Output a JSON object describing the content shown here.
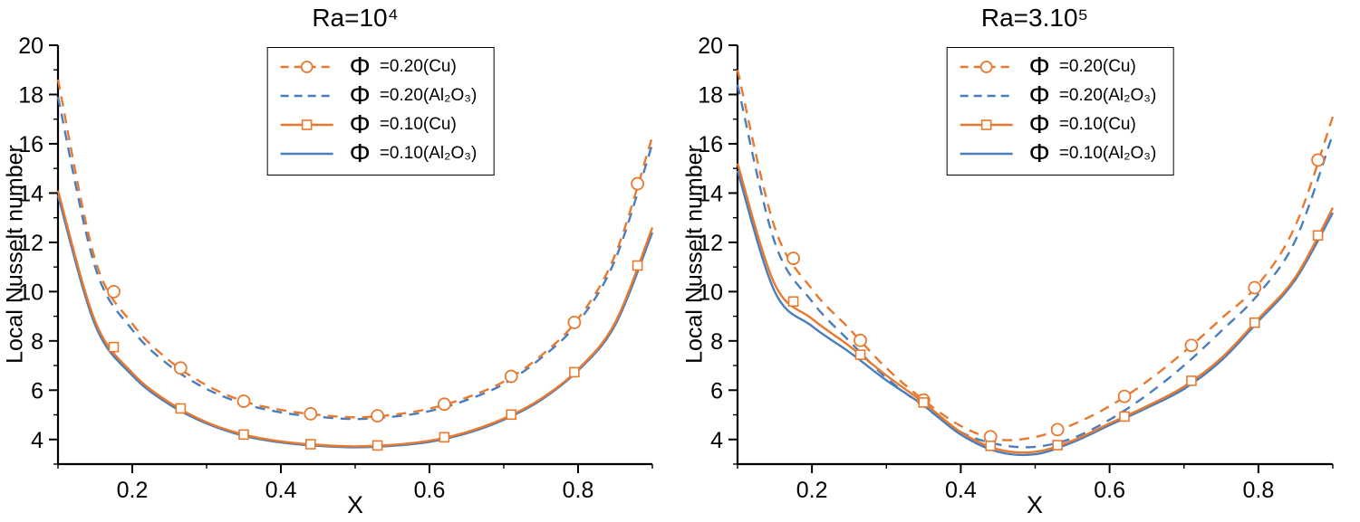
{
  "colors": {
    "orange": "#e8792f",
    "blue": "#4a7ebb",
    "axis": "#000000"
  },
  "chart_data": [
    {
      "type": "line",
      "title": "Ra=10⁴",
      "xlabel": "X",
      "ylabel": "Local Nusselt number",
      "xlim": [
        0.1,
        0.9
      ],
      "ylim": [
        3,
        20
      ],
      "xticks": [
        0.2,
        0.4,
        0.6,
        0.8
      ],
      "xticks_minor": [
        0.1,
        0.3,
        0.5,
        0.7,
        0.9
      ],
      "yticks": [
        4,
        6,
        8,
        10,
        12,
        14,
        16,
        18,
        20
      ],
      "yticks_minor": [
        3,
        5,
        7,
        9,
        11,
        13,
        15,
        17,
        19
      ],
      "grid": false,
      "legend_position": "top-center",
      "x": [
        0.1,
        0.15,
        0.2,
        0.25,
        0.3,
        0.35,
        0.4,
        0.45,
        0.5,
        0.55,
        0.6,
        0.65,
        0.7,
        0.75,
        0.8,
        0.85,
        0.9
      ],
      "series": [
        {
          "name": "Φ =0.20(Cu)",
          "phi": "Φ",
          "label": "=0.20(Cu)",
          "color": "#e8792f",
          "dash": "dashed",
          "marker": "circle",
          "marker_x": [
            0.175,
            0.265,
            0.35,
            0.44,
            0.53,
            0.62,
            0.71,
            0.795,
            0.88
          ],
          "values": [
            18.6,
            11.3,
            8.7,
            7.2,
            6.2,
            5.55,
            5.2,
            5.0,
            4.9,
            5.0,
            5.25,
            5.7,
            6.35,
            7.4,
            8.9,
            11.5,
            16.3
          ]
        },
        {
          "name": "Φ =0.20(Al₂O₃)",
          "phi": "Φ",
          "label": "=0.20(Al₂O₃)",
          "color": "#4a7ebb",
          "dash": "dashed",
          "marker": null,
          "values": [
            17.9,
            11.0,
            8.45,
            7.0,
            6.05,
            5.45,
            5.1,
            4.92,
            4.83,
            4.92,
            5.15,
            5.6,
            6.25,
            7.3,
            8.75,
            11.3,
            16.0
          ]
        },
        {
          "name": "Φ =0.10(Cu)",
          "phi": "Φ",
          "label": "=0.10(Cu)",
          "color": "#e8792f",
          "dash": "solid",
          "marker": "square",
          "marker_x": [
            0.175,
            0.265,
            0.35,
            0.44,
            0.53,
            0.62,
            0.71,
            0.795,
            0.88
          ],
          "values": [
            14.1,
            8.8,
            6.7,
            5.5,
            4.7,
            4.2,
            3.92,
            3.78,
            3.72,
            3.78,
            3.95,
            4.3,
            4.85,
            5.65,
            6.85,
            8.75,
            12.6
          ]
        },
        {
          "name": "Φ =0.10(Al₂O₃)",
          "phi": "Φ",
          "label": "=0.10(Al₂O₃)",
          "color": "#4a7ebb",
          "dash": "solid",
          "marker": null,
          "values": [
            13.9,
            8.65,
            6.6,
            5.42,
            4.65,
            4.15,
            3.88,
            3.74,
            3.68,
            3.74,
            3.9,
            4.25,
            4.8,
            5.6,
            6.8,
            8.65,
            12.4
          ]
        }
      ]
    },
    {
      "type": "line",
      "title": "Ra=3.10⁵",
      "xlabel": "X",
      "ylabel": "Local Nusselt number",
      "xlim": [
        0.1,
        0.9
      ],
      "ylim": [
        3,
        20
      ],
      "xticks": [
        0.2,
        0.4,
        0.6,
        0.8
      ],
      "xticks_minor": [
        0.1,
        0.3,
        0.5,
        0.7,
        0.9
      ],
      "yticks": [
        4,
        6,
        8,
        10,
        12,
        14,
        16,
        18,
        20
      ],
      "yticks_minor": [
        3,
        5,
        7,
        9,
        11,
        13,
        15,
        17,
        19
      ],
      "grid": false,
      "legend_position": "top-center",
      "x": [
        0.1,
        0.15,
        0.2,
        0.25,
        0.3,
        0.35,
        0.4,
        0.45,
        0.5,
        0.55,
        0.6,
        0.65,
        0.7,
        0.75,
        0.8,
        0.85,
        0.9
      ],
      "series": [
        {
          "name": "Φ =0.20(Cu)",
          "phi": "Φ",
          "label": "=0.20(Cu)",
          "color": "#e8792f",
          "dash": "dashed",
          "marker": "circle",
          "marker_x": [
            0.175,
            0.265,
            0.35,
            0.44,
            0.53,
            0.62,
            0.71,
            0.795,
            0.88
          ],
          "values": [
            19.0,
            12.6,
            10.1,
            8.5,
            6.9,
            5.6,
            4.55,
            4.0,
            4.1,
            4.6,
            5.35,
            6.35,
            7.55,
            8.9,
            10.3,
            12.7,
            17.1
          ]
        },
        {
          "name": "Φ =0.20(Al₂O₃)",
          "phi": "Φ",
          "label": "=0.20(Al₂O₃)",
          "color": "#4a7ebb",
          "dash": "dashed",
          "marker": null,
          "values": [
            18.4,
            12.0,
            9.6,
            8.0,
            6.5,
            5.35,
            4.3,
            3.8,
            3.7,
            4.05,
            4.8,
            5.8,
            7.0,
            8.4,
            9.9,
            12.1,
            16.4
          ]
        },
        {
          "name": "Φ =0.10(Cu)",
          "phi": "Φ",
          "label": "=0.10(Cu)",
          "color": "#e8792f",
          "dash": "solid",
          "marker": "square",
          "marker_x": [
            0.175,
            0.265,
            0.35,
            0.44,
            0.53,
            0.62,
            0.71,
            0.795,
            0.88
          ],
          "values": [
            15.2,
            10.3,
            8.9,
            7.8,
            6.6,
            5.5,
            4.3,
            3.6,
            3.5,
            3.95,
            4.65,
            5.35,
            6.15,
            7.3,
            8.9,
            10.6,
            13.4
          ]
        },
        {
          "name": "Φ =0.10(Al₂O₃)",
          "phi": "Φ",
          "label": "=0.10(Al₂O₃)",
          "color": "#4a7ebb",
          "dash": "solid",
          "marker": null,
          "values": [
            14.9,
            10.0,
            8.6,
            7.55,
            6.4,
            5.38,
            4.2,
            3.5,
            3.4,
            3.88,
            4.58,
            5.28,
            6.05,
            7.2,
            8.8,
            10.5,
            13.2
          ]
        }
      ]
    }
  ]
}
